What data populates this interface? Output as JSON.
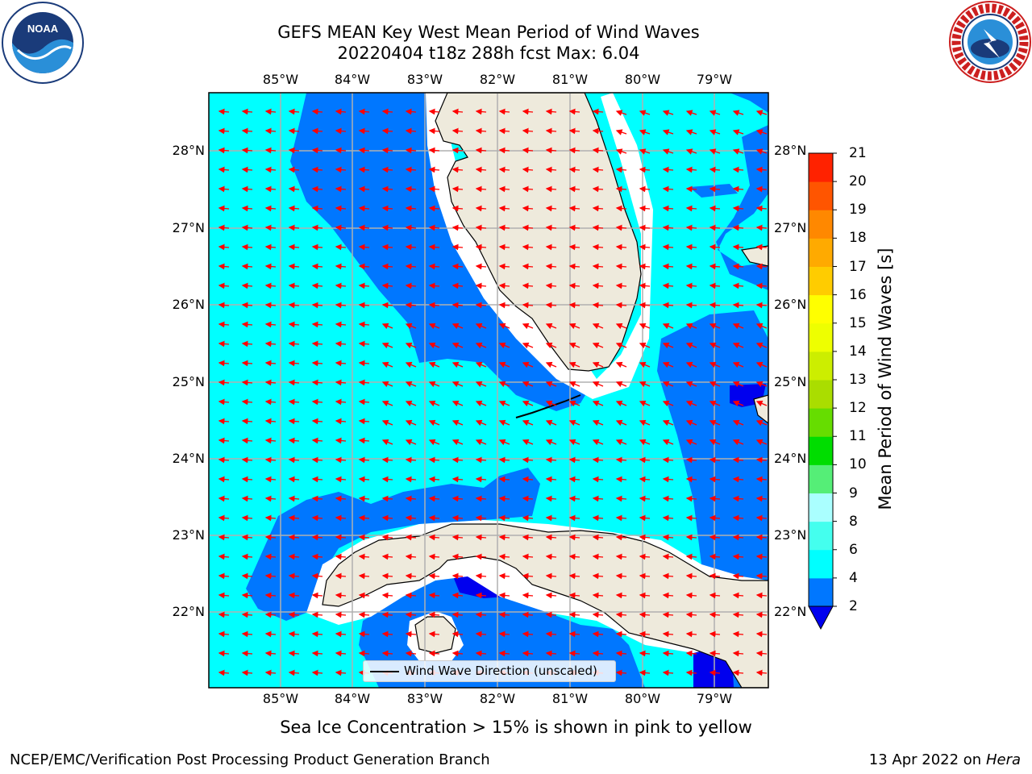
{
  "header": {
    "title_line1": "GEFS MEAN Key West Mean Period of Wind Waves",
    "title_line2": "20220404 t18z 288h fcst   Max: 6.04"
  },
  "logos": {
    "noaa_text": "NOAA",
    "nws_ring_text": "NATIONAL WEATHER SERVICE"
  },
  "map": {
    "lon_labels": [
      "85°W",
      "84°W",
      "83°W",
      "82°W",
      "81°W",
      "80°W",
      "79°W"
    ],
    "lat_labels": [
      "28°N",
      "27°N",
      "26°N",
      "25°N",
      "24°N",
      "23°N",
      "22°N"
    ],
    "colors": {
      "period_2_4": "#0077ff",
      "period_4_6": "#00ffff",
      "period_below_2": "#0000ee",
      "land": "#eeeadc",
      "arrow": "#ff0000",
      "grid": "#b0b0b0"
    }
  },
  "colorbar": {
    "label": "Mean Period of Wind Waves [s]",
    "ticks": [
      "2",
      "4",
      "6",
      "8",
      "9",
      "10",
      "11",
      "12",
      "13",
      "14",
      "15",
      "16",
      "17",
      "18",
      "19",
      "20",
      "21"
    ],
    "segment_colors": [
      "#0077ff",
      "#00ffff",
      "#44ffee",
      "#aaffff",
      "#55ee77",
      "#00dd00",
      "#66dd00",
      "#aadd00",
      "#ccee00",
      "#eeff00",
      "#ffff00",
      "#ffcc00",
      "#ffaa00",
      "#ff8800",
      "#ff5500",
      "#ff2200"
    ],
    "under_color": "#0000ee"
  },
  "legend": {
    "label": "Wind Wave Direction (unscaled)"
  },
  "ice_note": "Sea Ice Concentration > 15% is shown in pink to yellow",
  "footer": {
    "left": "NCEP/EMC/Verification Post Processing Product Generation Branch",
    "right_prefix": "13 Apr 2022 on ",
    "right_machine": "Hera"
  }
}
